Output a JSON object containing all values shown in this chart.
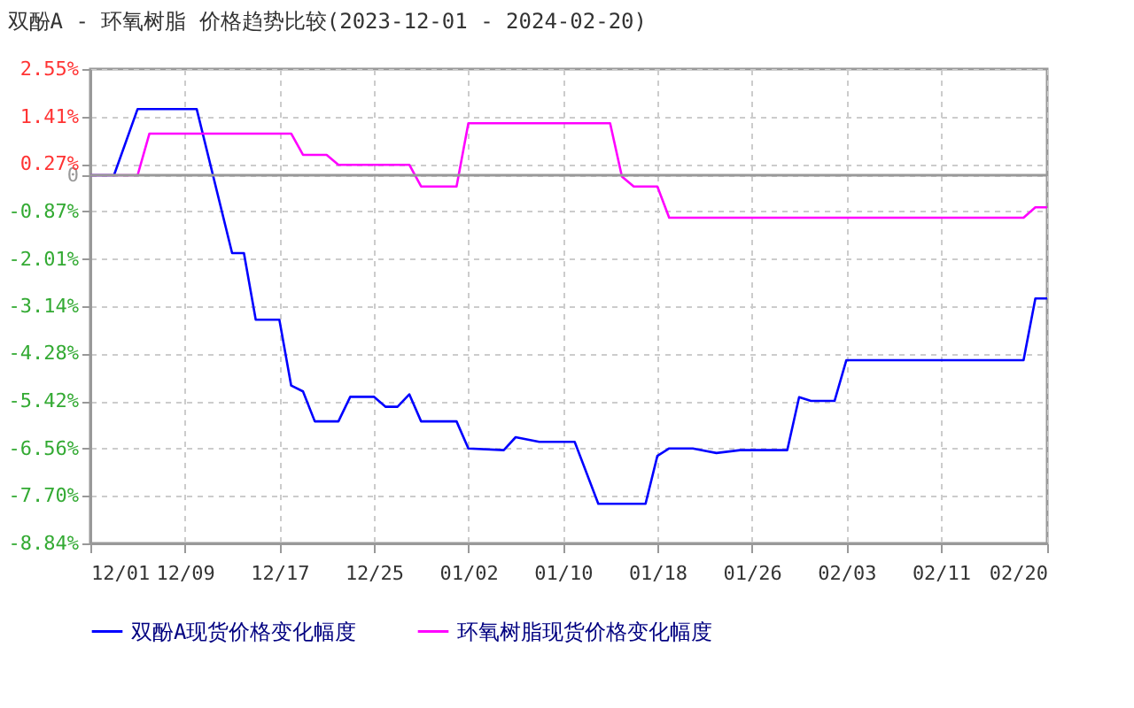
{
  "chart_data": {
    "type": "line",
    "title": "双酚A - 环氧树脂 价格趋势比较(2023-12-01 - 2024-02-20)",
    "xlim": [
      "2023-12-01",
      "2024-02-20"
    ],
    "xticks": [
      {
        "value": "2023-12-01",
        "label": "12/01"
      },
      {
        "value": "2023-12-09",
        "label": "12/09"
      },
      {
        "value": "2023-12-17",
        "label": "12/17"
      },
      {
        "value": "2023-12-25",
        "label": "12/25"
      },
      {
        "value": "2024-01-02",
        "label": "01/02"
      },
      {
        "value": "2024-01-10",
        "label": "01/10"
      },
      {
        "value": "2024-01-18",
        "label": "01/18"
      },
      {
        "value": "2024-01-26",
        "label": "01/26"
      },
      {
        "value": "2024-02-03",
        "label": "02/03"
      },
      {
        "value": "2024-02-11",
        "label": "02/11"
      },
      {
        "value": "2024-02-20",
        "label": "02/20"
      }
    ],
    "ylim": [
      -8.84,
      2.55
    ],
    "yticks": [
      {
        "value": 2.55,
        "label": "2.55%"
      },
      {
        "value": 1.41,
        "label": "1.41%"
      },
      {
        "value": 0.27,
        "label": "0.27%"
      },
      0,
      {
        "value": -0.87,
        "label": "-0.87%"
      },
      {
        "value": -2.01,
        "label": "-2.01%"
      },
      {
        "value": -3.14,
        "label": "-3.14%"
      },
      {
        "value": -4.28,
        "label": "-4.28%"
      },
      {
        "value": -5.42,
        "label": "-5.42%"
      },
      {
        "value": -6.56,
        "label": "-6.56%"
      },
      {
        "value": -7.7,
        "label": "-7.70%"
      },
      {
        "value": -8.84,
        "label": "-8.84%"
      }
    ],
    "grid": true,
    "legend": "bottom",
    "line_style": "solid",
    "marker": "none",
    "ref_lines": [
      {
        "axis": "y",
        "value": 0,
        "color": "#999999"
      }
    ],
    "series": [
      {
        "name": "双酚A现货价格变化幅度",
        "color": "#0000ff",
        "x": [
          "2023-12-01",
          "2023-12-03",
          "2023-12-05",
          "2023-12-10",
          "2023-12-13",
          "2023-12-14",
          "2023-12-15",
          "2023-12-17",
          "2023-12-18",
          "2023-12-19",
          "2023-12-20",
          "2023-12-22",
          "2023-12-23",
          "2023-12-25",
          "2023-12-26",
          "2023-12-27",
          "2023-12-28",
          "2023-12-29",
          "2024-01-01",
          "2024-01-02",
          "2024-01-05",
          "2024-01-06",
          "2024-01-08",
          "2024-01-11",
          "2024-01-13",
          "2024-01-17",
          "2024-01-18",
          "2024-01-19",
          "2024-01-21",
          "2024-01-23",
          "2024-01-25",
          "2024-01-29",
          "2024-01-30",
          "2024-01-31",
          "2024-02-02",
          "2024-02-03",
          "2024-02-18",
          "2024-02-19",
          "2024-02-20"
        ],
        "values": [
          0,
          0,
          1.59,
          1.59,
          -1.87,
          -1.87,
          -3.47,
          -3.47,
          -5.05,
          -5.19,
          -5.91,
          -5.91,
          -5.32,
          -5.32,
          -5.56,
          -5.56,
          -5.26,
          -5.91,
          -5.91,
          -6.56,
          -6.6,
          -6.29,
          -6.4,
          -6.4,
          -7.89,
          -7.89,
          -6.74,
          -6.56,
          -6.56,
          -6.67,
          -6.6,
          -6.6,
          -5.33,
          -5.42,
          -5.42,
          -4.44,
          -4.44,
          -2.96,
          -2.96
        ]
      },
      {
        "name": "环氧树脂现货价格变化幅度",
        "color": "#ff00ff",
        "x": [
          "2023-12-01",
          "2023-12-05",
          "2023-12-06",
          "2023-12-18",
          "2023-12-19",
          "2023-12-21",
          "2023-12-22",
          "2023-12-28",
          "2023-12-29",
          "2024-01-01",
          "2024-01-02",
          "2024-01-14",
          "2024-01-15",
          "2024-01-16",
          "2024-01-18",
          "2024-01-19",
          "2024-02-18",
          "2024-02-19",
          "2024-02-20"
        ],
        "values": [
          0,
          0,
          1.0,
          1.0,
          0.49,
          0.49,
          0.25,
          0.25,
          -0.27,
          -0.27,
          1.25,
          1.25,
          -0.03,
          -0.27,
          -0.27,
          -1.02,
          -1.02,
          -0.77,
          -0.77
        ]
      }
    ]
  }
}
